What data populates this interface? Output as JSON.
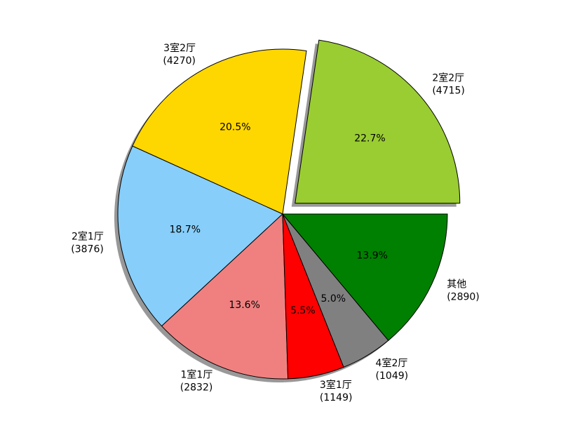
{
  "chart_data": {
    "type": "pie",
    "categories": [
      "2室2厅",
      "3室2厅",
      "2室1厅",
      "1室1厅",
      "3室1厅",
      "4室2厅",
      "其他"
    ],
    "values": [
      4715,
      4270,
      3876,
      2832,
      1149,
      1049,
      2890
    ],
    "value_labels": [
      "(4715)",
      "(4270)",
      "(3876)",
      "(2832)",
      "(1149)",
      "(1049)",
      "(2890)"
    ],
    "percent_labels": [
      "22.7%",
      "20.5%",
      "18.7%",
      "13.6%",
      "5.5%",
      "5.0%",
      "13.9%"
    ],
    "colors": [
      "#9acd32",
      "#ffd700",
      "#87cefa",
      "#f08080",
      "#ff0000",
      "#808080",
      "#008000"
    ],
    "explode": [
      0.1,
      0,
      0,
      0,
      0,
      0,
      0
    ],
    "startangle": 0,
    "shadow": true
  }
}
